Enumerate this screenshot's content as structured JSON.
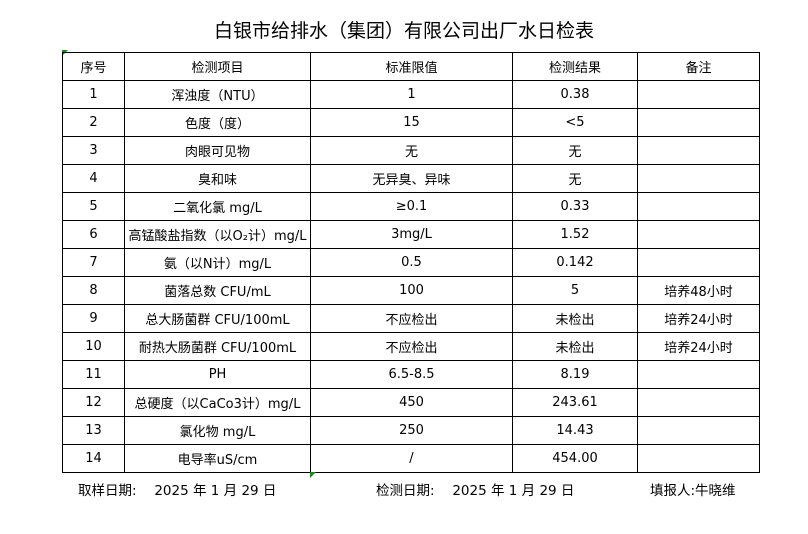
{
  "title": "白银市给排水（集团）有限公司出厂水日检表",
  "headers": [
    "序号",
    "检测项目",
    "标准限值",
    "检测结果",
    "备注"
  ],
  "rows": [
    [
      "1",
      "浑浊度（NTU）",
      "1",
      "0.38",
      ""
    ],
    [
      "2",
      "色度（度）",
      "15",
      "<5",
      ""
    ],
    [
      "3",
      "肉眼可见物",
      "无",
      "无",
      ""
    ],
    [
      "4",
      "臭和味",
      "无异臭、异味",
      "无",
      ""
    ],
    [
      "5",
      "二氧化氯 mg/L",
      "≥0.1",
      "0.33",
      ""
    ],
    [
      "6",
      "高锰酸盐指数（以O₂计）mg/L",
      "3mg/L",
      "1.52",
      ""
    ],
    [
      "7",
      "氨（以N计）mg/L",
      "0.5",
      "0.142",
      ""
    ],
    [
      "8",
      "菌落总数 CFU/mL",
      "100",
      "5",
      "培养48小时"
    ],
    [
      "9",
      "总大肠菌群 CFU/100mL",
      "不应检出",
      "未检出",
      "培养24小时"
    ],
    [
      "10",
      "耐热大肠菌群 CFU/100mL",
      "不应检出",
      "未检出",
      "培养24小时"
    ],
    [
      "11",
      "PH",
      "6.5-8.5",
      "8.19",
      ""
    ],
    [
      "12",
      "总硬度（以CaCo3计）mg/L",
      "450",
      "243.61",
      ""
    ],
    [
      "13",
      "氯化物 mg/L",
      "250",
      "14.43",
      ""
    ],
    [
      "14",
      "电导率uS/cm",
      "/",
      "454.00",
      ""
    ]
  ],
  "footer": {
    "sample_date": "取样日期:　 2025 年 1 月 29 日",
    "test_date": "检测日期:　 2025 年 1 月 29 日",
    "reporter": "填报人:牛晓维"
  }
}
